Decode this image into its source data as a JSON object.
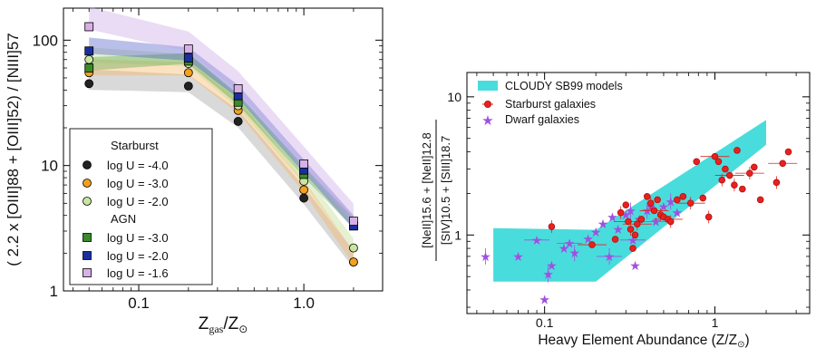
{
  "chart_data": [
    {
      "type": "line",
      "xscale": "log",
      "yscale": "log",
      "xlim": [
        0.035,
        3.0
      ],
      "ylim": [
        1,
        180
      ],
      "x_ticks": [
        {
          "v": 0.1,
          "label": "0.1"
        },
        {
          "v": 1.0,
          "label": "1.0"
        }
      ],
      "y_ticks": [
        {
          "v": 1,
          "label": "1"
        },
        {
          "v": 10,
          "label": "10"
        },
        {
          "v": 100,
          "label": "100"
        }
      ],
      "xlabel_main": "Z",
      "xlabel_sub": "gas",
      "xlabel_tail": "/Z",
      "xlabel_sun": "⊙",
      "ylabel": "( 2.2 x [OIII]88 + [OIII]52) / [NIII]57",
      "x": [
        0.05,
        0.2,
        0.4,
        1.0,
        2.0
      ],
      "series": [
        {
          "group": "Starburst",
          "name": "log U = -4.0",
          "marker": "circle",
          "color": "#222222",
          "band": "#9a9a9a",
          "values": [
            45,
            43,
            22.5,
            5.5,
            1.7
          ]
        },
        {
          "group": "Starburst",
          "name": "log U = -3.0",
          "marker": "circle",
          "color": "#f2a01e",
          "band": "#f6b35a",
          "values": [
            55,
            55,
            27.5,
            6.4,
            1.7
          ]
        },
        {
          "group": "Starburst",
          "name": "log U = -2.0",
          "marker": "circle",
          "color": "#c8e6a0",
          "band": "#bcd98f",
          "values": [
            70,
            65,
            30,
            7.5,
            2.2
          ]
        },
        {
          "group": "AGN",
          "name": "log U = -3.0",
          "marker": "square",
          "color": "#3a8a2a",
          "band": "#5ca24a",
          "values": [
            60,
            68,
            32,
            8.5,
            3.3
          ]
        },
        {
          "group": "AGN",
          "name": "log U = -2.0",
          "marker": "square",
          "color": "#1a2fa0",
          "band": "#4a58c8",
          "values": [
            82,
            72,
            36,
            9.2,
            3.3
          ]
        },
        {
          "group": "AGN",
          "name": "log U = -1.6",
          "marker": "square",
          "color": "#d8b0e8",
          "band": "#c9a2e4",
          "values": [
            128,
            85,
            41,
            10.3,
            3.6
          ]
        }
      ],
      "legend": {
        "placement": "lower-left",
        "groups": [
          {
            "title": "Starburst",
            "items": [
              0,
              1,
              2
            ]
          },
          {
            "title": "AGN",
            "items": [
              3,
              4,
              5
            ]
          }
        ]
      }
    },
    {
      "type": "scatter",
      "xscale": "log",
      "yscale": "log",
      "xlim": [
        0.035,
        3.6
      ],
      "ylim": [
        0.27,
        15
      ],
      "x_ticks": [
        {
          "v": 0.1,
          "label": "0.1"
        },
        {
          "v": 1,
          "label": "1"
        }
      ],
      "y_ticks": [
        {
          "v": 1,
          "label": "1"
        },
        {
          "v": 10,
          "label": "10"
        }
      ],
      "xlabel": "Heavy Element Abundance (Z/Z",
      "xlabel_sun": "⊙",
      "xlabel_close": ")",
      "ylabel_numerator": "[NeII]15.6 + [NeII]12.8",
      "ylabel_denominator": "[SIV]10.5 + [SIII]18.7",
      "model_band": {
        "name": "CLOUDY SB99 models",
        "color": "#49dcdc",
        "polygon": [
          [
            0.05,
            1.12
          ],
          [
            0.2,
            1.09
          ],
          [
            2.0,
            6.8
          ],
          [
            2.0,
            4.5
          ],
          [
            0.2,
            0.46
          ],
          [
            0.05,
            0.46
          ]
        ]
      },
      "starburst": {
        "name": "Starburst galaxies",
        "color": "#e8211f",
        "points": [
          [
            0.11,
            1.15
          ],
          [
            0.19,
            0.85
          ],
          [
            0.26,
            0.93
          ],
          [
            0.28,
            1.45
          ],
          [
            0.3,
            1.65
          ],
          [
            0.31,
            1.25
          ],
          [
            0.32,
            1.1
          ],
          [
            0.33,
            0.8
          ],
          [
            0.34,
            1.0
          ],
          [
            0.35,
            1.2
          ],
          [
            0.37,
            1.3
          ],
          [
            0.4,
            1.9
          ],
          [
            0.42,
            1.7
          ],
          [
            0.44,
            1.5
          ],
          [
            0.46,
            1.8
          ],
          [
            0.48,
            1.4
          ],
          [
            0.5,
            1.35
          ],
          [
            0.53,
            1.3
          ],
          [
            0.55,
            1.25
          ],
          [
            0.6,
            1.8
          ],
          [
            0.65,
            1.9
          ],
          [
            0.72,
            1.7
          ],
          [
            0.78,
            3.4
          ],
          [
            0.85,
            1.85
          ],
          [
            0.92,
            1.35
          ],
          [
            1.0,
            3.7
          ],
          [
            1.05,
            3.4
          ],
          [
            1.1,
            2.5
          ],
          [
            1.15,
            3.0
          ],
          [
            1.22,
            2.7
          ],
          [
            1.3,
            2.3
          ],
          [
            1.35,
            4.1
          ],
          [
            1.45,
            2.15
          ],
          [
            1.6,
            2.8
          ],
          [
            1.7,
            3.1
          ],
          [
            1.85,
            1.8
          ],
          [
            2.3,
            2.4
          ],
          [
            2.5,
            3.3
          ],
          [
            2.7,
            4.0
          ]
        ]
      },
      "dwarf": {
        "name": "Dwarf galaxies",
        "color": "#a050e0",
        "points": [
          [
            0.045,
            0.7
          ],
          [
            0.07,
            0.7
          ],
          [
            0.09,
            0.92
          ],
          [
            0.1,
            0.34
          ],
          [
            0.105,
            0.52
          ],
          [
            0.11,
            0.6
          ],
          [
            0.13,
            0.8
          ],
          [
            0.14,
            0.87
          ],
          [
            0.15,
            0.74
          ],
          [
            0.18,
            0.94
          ],
          [
            0.2,
            1.05
          ],
          [
            0.22,
            1.2
          ],
          [
            0.24,
            0.7
          ],
          [
            0.25,
            1.35
          ],
          [
            0.27,
            1.1
          ],
          [
            0.3,
            1.4
          ],
          [
            0.32,
            1.5
          ],
          [
            0.33,
            0.92
          ],
          [
            0.34,
            0.6
          ],
          [
            0.36,
            1.3
          ],
          [
            0.4,
            1.5
          ],
          [
            0.42,
            1.6
          ],
          [
            0.45,
            1.25
          ],
          [
            0.5,
            1.6
          ],
          [
            0.55,
            1.75
          ],
          [
            0.6,
            1.45
          ]
        ]
      },
      "legend_placement": "top-left"
    }
  ]
}
